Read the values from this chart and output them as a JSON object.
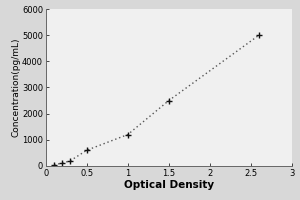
{
  "x_data": [
    0.1,
    0.2,
    0.3,
    0.5,
    1.0,
    1.5,
    2.6
  ],
  "y_data": [
    50,
    100,
    200,
    600,
    1200,
    2500,
    5000
  ],
  "xlabel": "Optical Density",
  "ylabel": "Concentration(pg/mL)",
  "xlim": [
    0,
    3
  ],
  "ylim": [
    0,
    6000
  ],
  "xticks": [
    0,
    0.5,
    1,
    1.5,
    2,
    2.5,
    3
  ],
  "yticks": [
    0,
    1000,
    2000,
    3000,
    4000,
    5000,
    6000
  ],
  "marker": "+",
  "marker_size": 5,
  "line_color": "#555555",
  "marker_color": "#111111",
  "fig_bg_color": "#d8d8d8",
  "plot_bg_color": "#f0f0f0",
  "xlabel_fontsize": 7.5,
  "ylabel_fontsize": 6.5,
  "tick_fontsize": 6.0,
  "xlabel_bold": true,
  "ylabel_bold": false
}
